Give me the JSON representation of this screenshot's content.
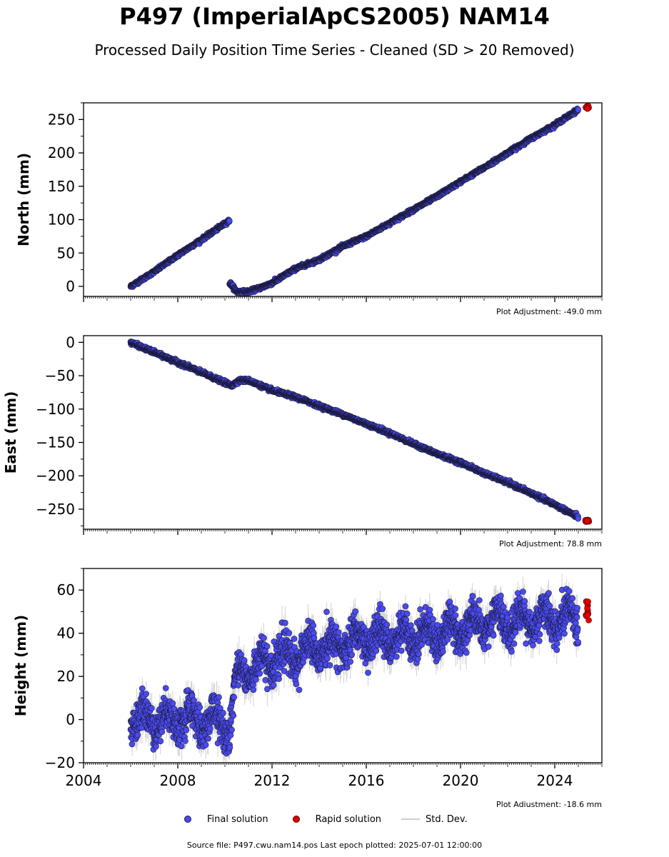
{
  "title": "P497 (ImperialApCS2005) NAM14",
  "subtitle": "Processed Daily Position Time Series - Cleaned (SD > 20 Removed)",
  "legend": {
    "final": "Final solution",
    "rapid": "Rapid solution",
    "stddev": "Std. Dev."
  },
  "source": "Source file: P497.cwu.nam14.pos  Last epoch plotted: 2025-07-01 12:00:00",
  "colors": {
    "final": "#4a4aee",
    "rapid": "#e00000",
    "stddev": "#c8c8c8",
    "edge": "#1a1a3a"
  },
  "chart_data": [
    {
      "type": "scatter",
      "ylabel": "North (mm)",
      "adjustment": "Plot Adjustment: -49.0 mm",
      "xlim": [
        2004.0,
        2026.0
      ],
      "ylim": [
        -15,
        275
      ],
      "yticks": [
        0,
        50,
        100,
        150,
        200,
        250
      ],
      "ytick_labels": [
        "0",
        "50",
        "100",
        "150",
        "200",
        "250"
      ],
      "final_series": [
        {
          "x": 2006.0,
          "y": 0
        },
        {
          "x": 2007.0,
          "y": 22
        },
        {
          "x": 2008.0,
          "y": 47
        },
        {
          "x": 2009.0,
          "y": 70
        },
        {
          "x": 2010.2,
          "y": 99
        },
        {
          "x": 2010.25,
          "y": 4
        },
        {
          "x": 2010.5,
          "y": -8
        },
        {
          "x": 2011.0,
          "y": -8
        },
        {
          "x": 2011.5,
          "y": -2
        },
        {
          "x": 2012.0,
          "y": 5
        },
        {
          "x": 2013.0,
          "y": 27
        },
        {
          "x": 2014.0,
          "y": 40
        },
        {
          "x": 2015.0,
          "y": 60
        },
        {
          "x": 2016.0,
          "y": 75
        },
        {
          "x": 2017.0,
          "y": 95
        },
        {
          "x": 2018.0,
          "y": 115
        },
        {
          "x": 2019.0,
          "y": 135
        },
        {
          "x": 2020.0,
          "y": 157
        },
        {
          "x": 2021.0,
          "y": 178
        },
        {
          "x": 2022.0,
          "y": 200
        },
        {
          "x": 2023.0,
          "y": 222
        },
        {
          "x": 2024.0,
          "y": 242
        },
        {
          "x": 2025.0,
          "y": 265
        }
      ],
      "noise_sd": 1.2,
      "rapid": {
        "x": [
          2025.3,
          2025.45
        ],
        "y": [
          266,
          270
        ]
      },
      "show_stddev": false
    },
    {
      "type": "scatter",
      "ylabel": "East (mm)",
      "adjustment": "Plot Adjustment: 78.8 mm",
      "xlim": [
        2004.0,
        2026.0
      ],
      "ylim": [
        -280,
        10
      ],
      "yticks": [
        0,
        -50,
        -100,
        -150,
        -200,
        -250
      ],
      "ytick_labels": [
        "0",
        "−50",
        "−100",
        "−150",
        "−200",
        "−250"
      ],
      "final_series": [
        {
          "x": 2006.0,
          "y": 0
        },
        {
          "x": 2007.0,
          "y": -15
        },
        {
          "x": 2008.0,
          "y": -30
        },
        {
          "x": 2009.0,
          "y": -45
        },
        {
          "x": 2010.3,
          "y": -65
        },
        {
          "x": 2010.6,
          "y": -57
        },
        {
          "x": 2011.0,
          "y": -57
        },
        {
          "x": 2012.0,
          "y": -72
        },
        {
          "x": 2013.0,
          "y": -82
        },
        {
          "x": 2014.0,
          "y": -95
        },
        {
          "x": 2015.0,
          "y": -108
        },
        {
          "x": 2016.0,
          "y": -122
        },
        {
          "x": 2017.0,
          "y": -136
        },
        {
          "x": 2018.0,
          "y": -152
        },
        {
          "x": 2019.0,
          "y": -167
        },
        {
          "x": 2020.0,
          "y": -180
        },
        {
          "x": 2021.0,
          "y": -196
        },
        {
          "x": 2022.0,
          "y": -210
        },
        {
          "x": 2023.0,
          "y": -226
        },
        {
          "x": 2024.0,
          "y": -243
        },
        {
          "x": 2025.0,
          "y": -262
        }
      ],
      "noise_sd": 1.3,
      "rapid": {
        "x": [
          2025.3,
          2025.45
        ],
        "y": [
          -266,
          -269
        ]
      },
      "show_stddev": false
    },
    {
      "type": "scatter",
      "ylabel": "Height (mm)",
      "adjustment": "Plot Adjustment: -18.6 mm",
      "xlim": [
        2004.0,
        2026.0
      ],
      "ylim": [
        -20,
        70
      ],
      "yticks": [
        -20,
        0,
        20,
        40,
        60
      ],
      "ytick_labels": [
        "−20",
        "0",
        "20",
        "40",
        "60"
      ],
      "xticks": [
        2004,
        2008,
        2012,
        2016,
        2020,
        2024
      ],
      "xtick_labels": [
        "2004",
        "2008",
        "2012",
        "2016",
        "2020",
        "2024"
      ],
      "final_series": [
        {
          "x": 2006.0,
          "y": 0
        },
        {
          "x": 2007.0,
          "y": 0
        },
        {
          "x": 2008.0,
          "y": 0
        },
        {
          "x": 2009.0,
          "y": 0
        },
        {
          "x": 2010.2,
          "y": -2
        },
        {
          "x": 2010.5,
          "y": 20
        },
        {
          "x": 2011.0,
          "y": 22
        },
        {
          "x": 2012.0,
          "y": 28
        },
        {
          "x": 2013.0,
          "y": 30
        },
        {
          "x": 2014.0,
          "y": 33
        },
        {
          "x": 2015.0,
          "y": 35
        },
        {
          "x": 2016.0,
          "y": 37
        },
        {
          "x": 2017.0,
          "y": 38
        },
        {
          "x": 2018.0,
          "y": 39
        },
        {
          "x": 2019.0,
          "y": 40
        },
        {
          "x": 2020.0,
          "y": 42
        },
        {
          "x": 2021.0,
          "y": 44
        },
        {
          "x": 2022.0,
          "y": 45
        },
        {
          "x": 2023.0,
          "y": 47
        },
        {
          "x": 2024.0,
          "y": 47
        },
        {
          "x": 2025.0,
          "y": 48
        }
      ],
      "seasonal_amplitude": 5,
      "noise_sd": 4,
      "rapid": {
        "x": [
          2025.3,
          2025.45
        ],
        "y": [
          45,
          55
        ]
      },
      "show_stddev": true
    }
  ]
}
